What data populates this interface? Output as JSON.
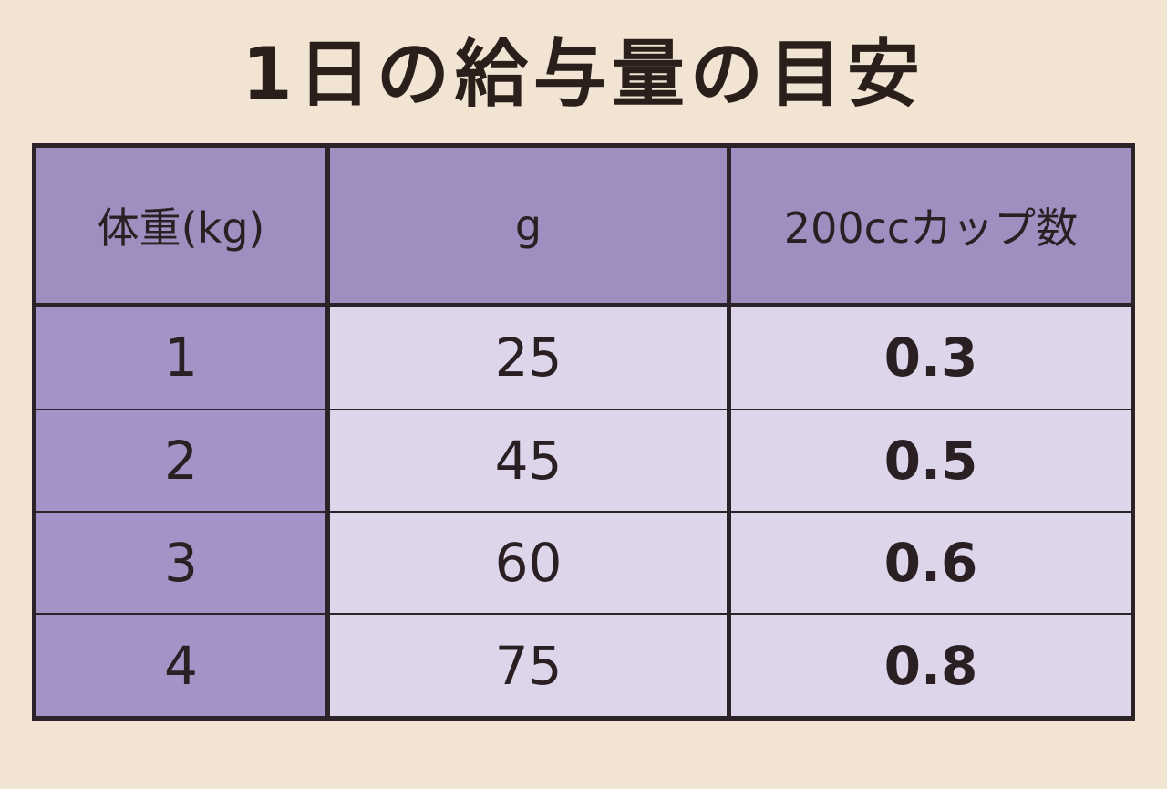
{
  "title": "1日の給与量の目安",
  "table": {
    "header": [
      "体重(kg)",
      "g",
      "200ccカップ数"
    ],
    "rows": [
      [
        "1",
        "25",
        "0.3"
      ],
      [
        "2",
        "45",
        "0.5"
      ],
      [
        "3",
        "60",
        "0.6"
      ],
      [
        "4",
        "75",
        "0.8"
      ]
    ]
  }
}
